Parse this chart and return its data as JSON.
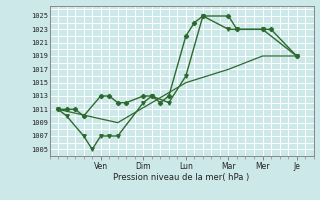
{
  "title": "",
  "xlabel": "Pression niveau de la mer( hPa )",
  "bg_color": "#cce8e8",
  "grid_color": "#ffffff",
  "line_color": "#2d6a2d",
  "ylim": [
    1004,
    1026.5
  ],
  "yticks": [
    1005,
    1007,
    1009,
    1011,
    1013,
    1015,
    1017,
    1019,
    1021,
    1023,
    1025
  ],
  "x_day_labels": [
    "Ven",
    "Dim",
    "Lun",
    "Mar",
    "Mer",
    "Je"
  ],
  "x_day_positions": [
    3.0,
    5.5,
    8.0,
    10.5,
    12.5,
    14.5
  ],
  "xlim": [
    0,
    15.5
  ],
  "line1_x": [
    0.5,
    1.0,
    1.5,
    2.0,
    3.0,
    3.5,
    4.0,
    4.5,
    5.5,
    6.0,
    6.5,
    7.0,
    8.0,
    8.5,
    9.0,
    10.5,
    11.0,
    12.5,
    13.0,
    14.5
  ],
  "line1_y": [
    1011,
    1011,
    1011,
    1010,
    1013,
    1013,
    1012,
    1012,
    1013,
    1013,
    1012,
    1013,
    1022,
    1024,
    1025,
    1025,
    1023,
    1023,
    1023,
    1019
  ],
  "line2_x": [
    0.5,
    1.0,
    2.0,
    2.5,
    3.0,
    3.5,
    4.0,
    5.5,
    6.0,
    7.0,
    8.0,
    9.0,
    10.5,
    11.0,
    12.5,
    14.5
  ],
  "line2_y": [
    1011,
    1010,
    1007,
    1005,
    1007,
    1007,
    1007,
    1012,
    1013,
    1012,
    1016,
    1025,
    1023,
    1023,
    1023,
    1019
  ],
  "line3_x": [
    0.5,
    4.0,
    6.0,
    8.0,
    10.5,
    12.5,
    14.5
  ],
  "line3_y": [
    1011,
    1009,
    1012,
    1015,
    1017,
    1019,
    1019
  ]
}
